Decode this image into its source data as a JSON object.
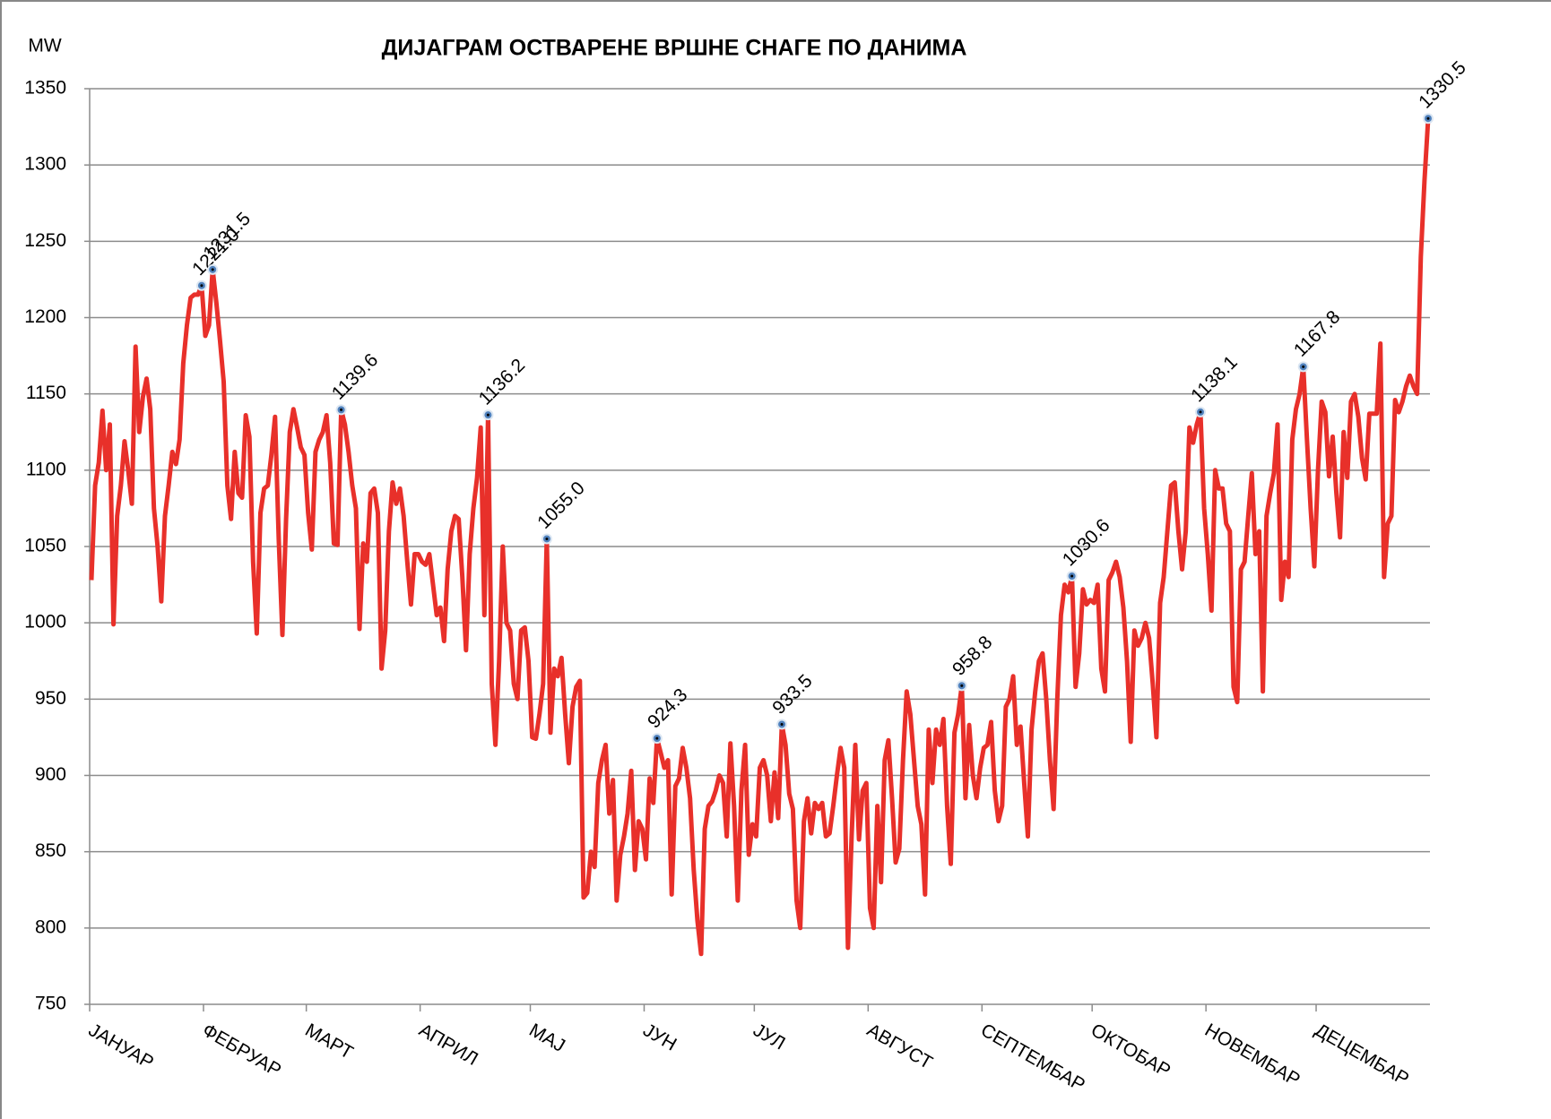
{
  "chart_data": {
    "type": "line",
    "title": "ДИЈАГРАМ ОСТВАРЕНЕ ВРШНЕ СНАГЕ ПО ДАНИМА",
    "y_label": "MW",
    "ylim": [
      750,
      1350
    ],
    "yticks": [
      750,
      800,
      850,
      900,
      950,
      1000,
      1050,
      1100,
      1150,
      1200,
      1250,
      1300,
      1350
    ],
    "xlim": [
      0,
      365
    ],
    "xticks": [
      {
        "value": 0,
        "label": "ЈАНУАР"
      },
      {
        "value": 31,
        "label": "ФЕБРУАР"
      },
      {
        "value": 59,
        "label": "МАРТ"
      },
      {
        "value": 90,
        "label": "АПРИЛ"
      },
      {
        "value": 120,
        "label": "МАЈ"
      },
      {
        "value": 151,
        "label": "ЈУН"
      },
      {
        "value": 181,
        "label": "ЈУЛ"
      },
      {
        "value": 212,
        "label": "АВГУСТ"
      },
      {
        "value": 243,
        "label": "СЕПТЕМБАР"
      },
      {
        "value": 273,
        "label": "ОКТОБАР"
      },
      {
        "value": 304,
        "label": "НОВЕМБАР"
      },
      {
        "value": 334,
        "label": "ДЕЦЕМБАР"
      }
    ],
    "grid": true,
    "series": [
      {
        "color": "#e8302a",
        "values": [
          1028,
          1090,
          1105,
          1139,
          1100,
          1130,
          999,
          1070,
          1090,
          1119,
          1100,
          1078,
          1181,
          1125,
          1148,
          1160,
          1140,
          1075,
          1050,
          1014,
          1070,
          1090,
          1112,
          1104,
          1120,
          1170,
          1195,
          1213,
          1215,
          1215,
          1221.0,
          1188,
          1195,
          1231.5,
          1210,
          1185,
          1158,
          1090,
          1068,
          1112,
          1085,
          1082,
          1136,
          1122,
          1040,
          993,
          1072,
          1088,
          1090,
          1110,
          1135,
          1055,
          992,
          1068,
          1125,
          1140,
          1128,
          1115,
          1110,
          1072,
          1048,
          1112,
          1120,
          1125,
          1136,
          1105,
          1052,
          1051,
          1139.6,
          1130,
          1112,
          1090,
          1075,
          996,
          1052,
          1040,
          1085,
          1088,
          1072,
          970,
          995,
          1060,
          1092,
          1078,
          1088,
          1070,
          1040,
          1012,
          1045,
          1045,
          1040,
          1038,
          1045,
          1025,
          1005,
          1010,
          988,
          1035,
          1060,
          1070,
          1068,
          1030,
          982,
          1045,
          1075,
          1095,
          1128,
          1005,
          1136.2,
          960,
          920,
          975,
          1050,
          1000,
          995,
          960,
          950,
          995,
          997,
          975,
          925,
          924,
          940,
          960,
          1055.0,
          928,
          970,
          965,
          977,
          940,
          908,
          945,
          958,
          962,
          820,
          823,
          850,
          840,
          895,
          910,
          920,
          875,
          897,
          818,
          848,
          860,
          875,
          903,
          838,
          870,
          865,
          845,
          898,
          882,
          924.3,
          915,
          905,
          910,
          822,
          893,
          898,
          918,
          905,
          885,
          838,
          805,
          783,
          865,
          880,
          883,
          890,
          900,
          895,
          860,
          921,
          880,
          818,
          890,
          920,
          848,
          868,
          860,
          905,
          910,
          900,
          870,
          902,
          872,
          933.5,
          920,
          888,
          878,
          818,
          800,
          870,
          885,
          862,
          882,
          878,
          882,
          860,
          862,
          880,
          900,
          918,
          905,
          787,
          860,
          920,
          858,
          890,
          895,
          813,
          800,
          880,
          830,
          910,
          923,
          885,
          843,
          852,
          910,
          955,
          940,
          910,
          880,
          868,
          822,
          930,
          895,
          930,
          920,
          937,
          880,
          842,
          928,
          940,
          958.8,
          885,
          933,
          900,
          885,
          905,
          918,
          920,
          935,
          890,
          870,
          880,
          945,
          950,
          965,
          920,
          932,
          895,
          860,
          930,
          955,
          975,
          980,
          950,
          910,
          878,
          950,
          1005,
          1025,
          1020,
          1030.6,
          958,
          980,
          1022,
          1012,
          1015,
          1013,
          1025,
          970,
          955,
          1028,
          1033,
          1040,
          1030,
          1010,
          975,
          922,
          995,
          985,
          990,
          1000,
          990,
          960,
          925,
          1013,
          1030,
          1060,
          1090,
          1092,
          1060,
          1035,
          1060,
          1128,
          1118,
          1130,
          1138.1,
          1075,
          1045,
          1008,
          1100,
          1088,
          1088,
          1065,
          1060,
          958,
          948,
          1035,
          1040,
          1070,
          1098,
          1045,
          1060,
          955,
          1070,
          1085,
          1098,
          1130,
          1015,
          1040,
          1030,
          1120,
          1140,
          1150,
          1167.8,
          1120,
          1075,
          1037,
          1100,
          1145,
          1138,
          1096,
          1122,
          1085,
          1056,
          1125,
          1095,
          1145,
          1150,
          1135,
          1108,
          1094,
          1137,
          1137,
          1137,
          1183,
          1030,
          1065,
          1070,
          1146,
          1138,
          1145,
          1155,
          1162,
          1155,
          1150,
          1240,
          1290,
          1330.5
        ]
      }
    ],
    "peaks": {
      "x": [
        30,
        33,
        68,
        108,
        124,
        154,
        188,
        237,
        267,
        302,
        330,
        364
      ],
      "values": [
        1221.0,
        1231.5,
        1139.6,
        1136.2,
        1055.0,
        924.3,
        933.5,
        958.8,
        1030.6,
        1138.1,
        1167.8,
        1330.5
      ],
      "value_labels": [
        "1221.0",
        "1231.5",
        "1139.6",
        "1136.2",
        "1055.0",
        "924.3",
        "933.5",
        "958.8",
        "1030.6",
        "1138.1",
        "1167.8",
        "1330.5"
      ]
    }
  }
}
